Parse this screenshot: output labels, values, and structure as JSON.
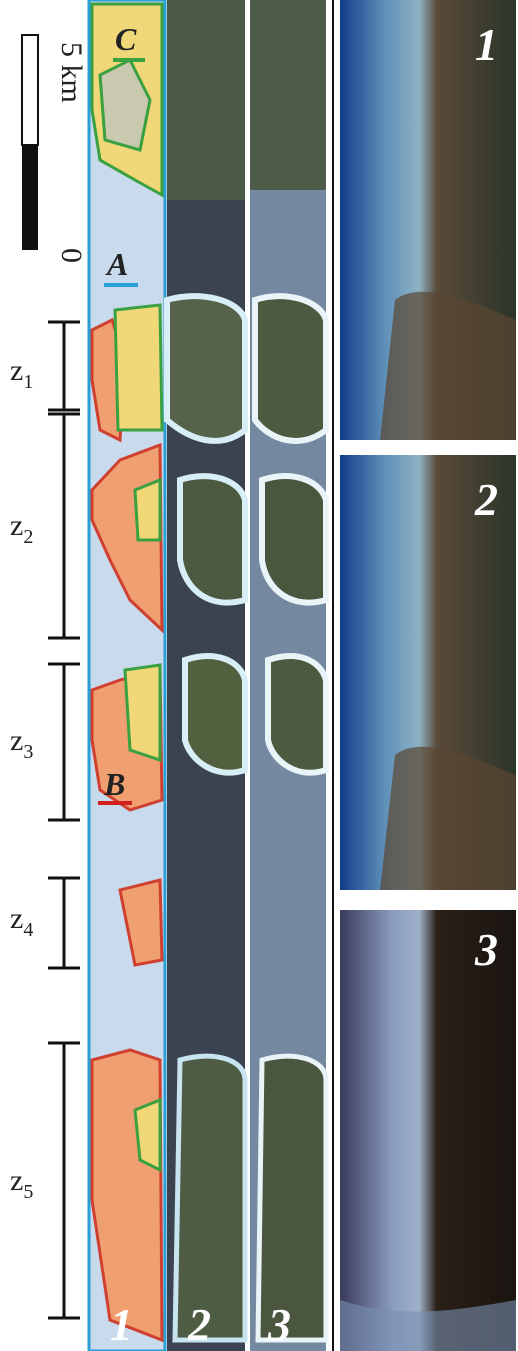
{
  "scale_bar": {
    "top_label": "5 km",
    "bottom_label": "0"
  },
  "sites": [
    {
      "label": "C"
    },
    {
      "label": "A"
    },
    {
      "label": "B"
    }
  ],
  "zones": [
    {
      "letter": "z",
      "index": "1"
    },
    {
      "letter": "z",
      "index": "2"
    },
    {
      "letter": "z",
      "index": "3"
    },
    {
      "letter": "z",
      "index": "4"
    },
    {
      "letter": "z",
      "index": "5"
    }
  ],
  "strips": [
    {
      "label": "1"
    },
    {
      "label": "2"
    },
    {
      "label": "3"
    }
  ],
  "panels": [
    {
      "label": "1"
    },
    {
      "label": "2"
    },
    {
      "label": "3"
    }
  ]
}
